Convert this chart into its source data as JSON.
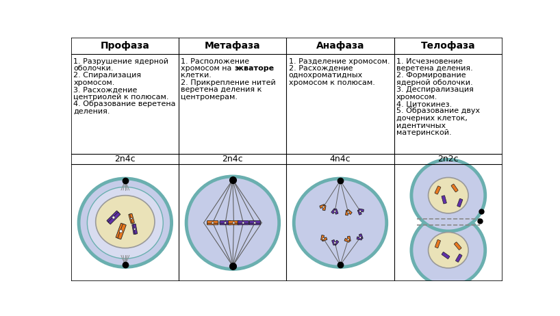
{
  "phases": [
    "Профаза",
    "Метафаза",
    "Анафаза",
    "Телофаза"
  ],
  "ploidy": [
    "2n4c",
    "2n4c",
    "4n4c",
    "2n2c"
  ],
  "descriptions": [
    "1. Разрушение ядерной\nоболочки.\n2. Спирализация\nхромосом.\n3. Расхождение\nцентриолей к полюсам.\n4. Образование веретена\nделения.",
    "1. Расположение\nхромосом на {экваторе}\nклетки.\n2. Прикрепление нитей\nверетена деления к\nцентромерам.",
    "1. Разделение хромосом.\n2. Расхождение\nоднохроматидных\nхромосом к полюсам.",
    "1. Исчезновение\nверетена деления.\n2. Формирование\nядерной оболочки.\n3. Деспирализация\nхромосом.\n4. Цитокинез.\n5. Образование двух\nдочерних клеток,\nидентичных\nматеринской."
  ],
  "cell_outer_color": "#6aafaf",
  "cell_bg_color": "#c5cce8",
  "nucleus_color": "#eae2b8",
  "chr_orange": "#e87820",
  "chr_purple": "#6030a8",
  "spindle_color": "#606060",
  "bg_color": "#ffffff",
  "text_color": "#000000",
  "font_size_header": 10,
  "font_size_desc": 8.0,
  "font_size_ploidy": 9
}
